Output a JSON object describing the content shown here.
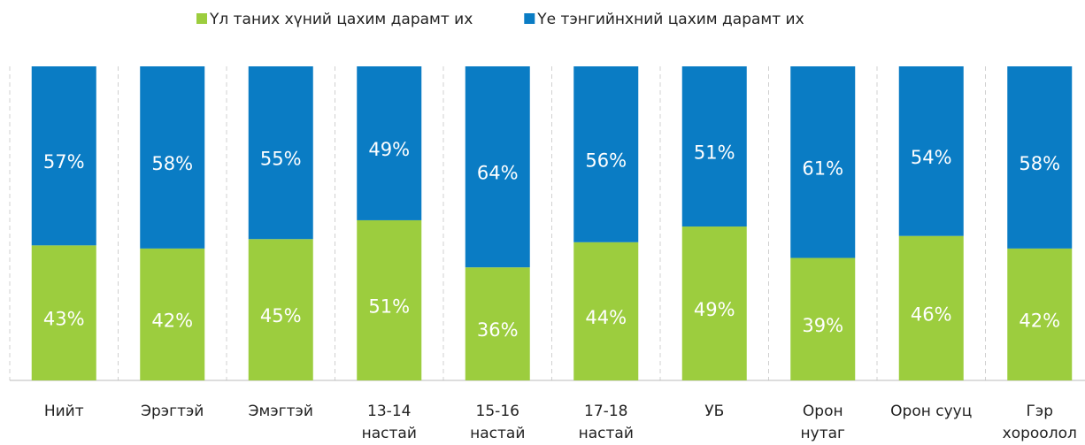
{
  "chart_data": {
    "type": "stacked_bar_100",
    "categories": [
      "Нийт",
      "Эрэгтэй",
      "Эмэгтэй",
      "13-14\nнастай",
      "15-16\nнастай",
      "17-18\nнастай",
      "УБ",
      "Орон\nнутаг",
      "Орон сууц",
      "Гэр\nхороолол"
    ],
    "series": [
      {
        "name": "Үл таних хүний цахим дарамт их",
        "color": "#9ccd3e",
        "values": [
          43,
          42,
          45,
          51,
          36,
          44,
          49,
          39,
          46,
          42
        ],
        "value_labels": [
          "43%",
          "42%",
          "45%",
          "51%",
          "36%",
          "44%",
          "49%",
          "39%",
          "46%",
          "42%"
        ]
      },
      {
        "name": "Үе тэнгийнхний цахим дарамт их",
        "color": "#0a7cc4",
        "values": [
          57,
          58,
          55,
          49,
          64,
          56,
          51,
          61,
          54,
          58
        ],
        "value_labels": [
          "57%",
          "58%",
          "55%",
          "49%",
          "64%",
          "56%",
          "51%",
          "61%",
          "54%",
          "58%"
        ]
      }
    ],
    "ylim": [
      0,
      100
    ],
    "legend": "top"
  }
}
